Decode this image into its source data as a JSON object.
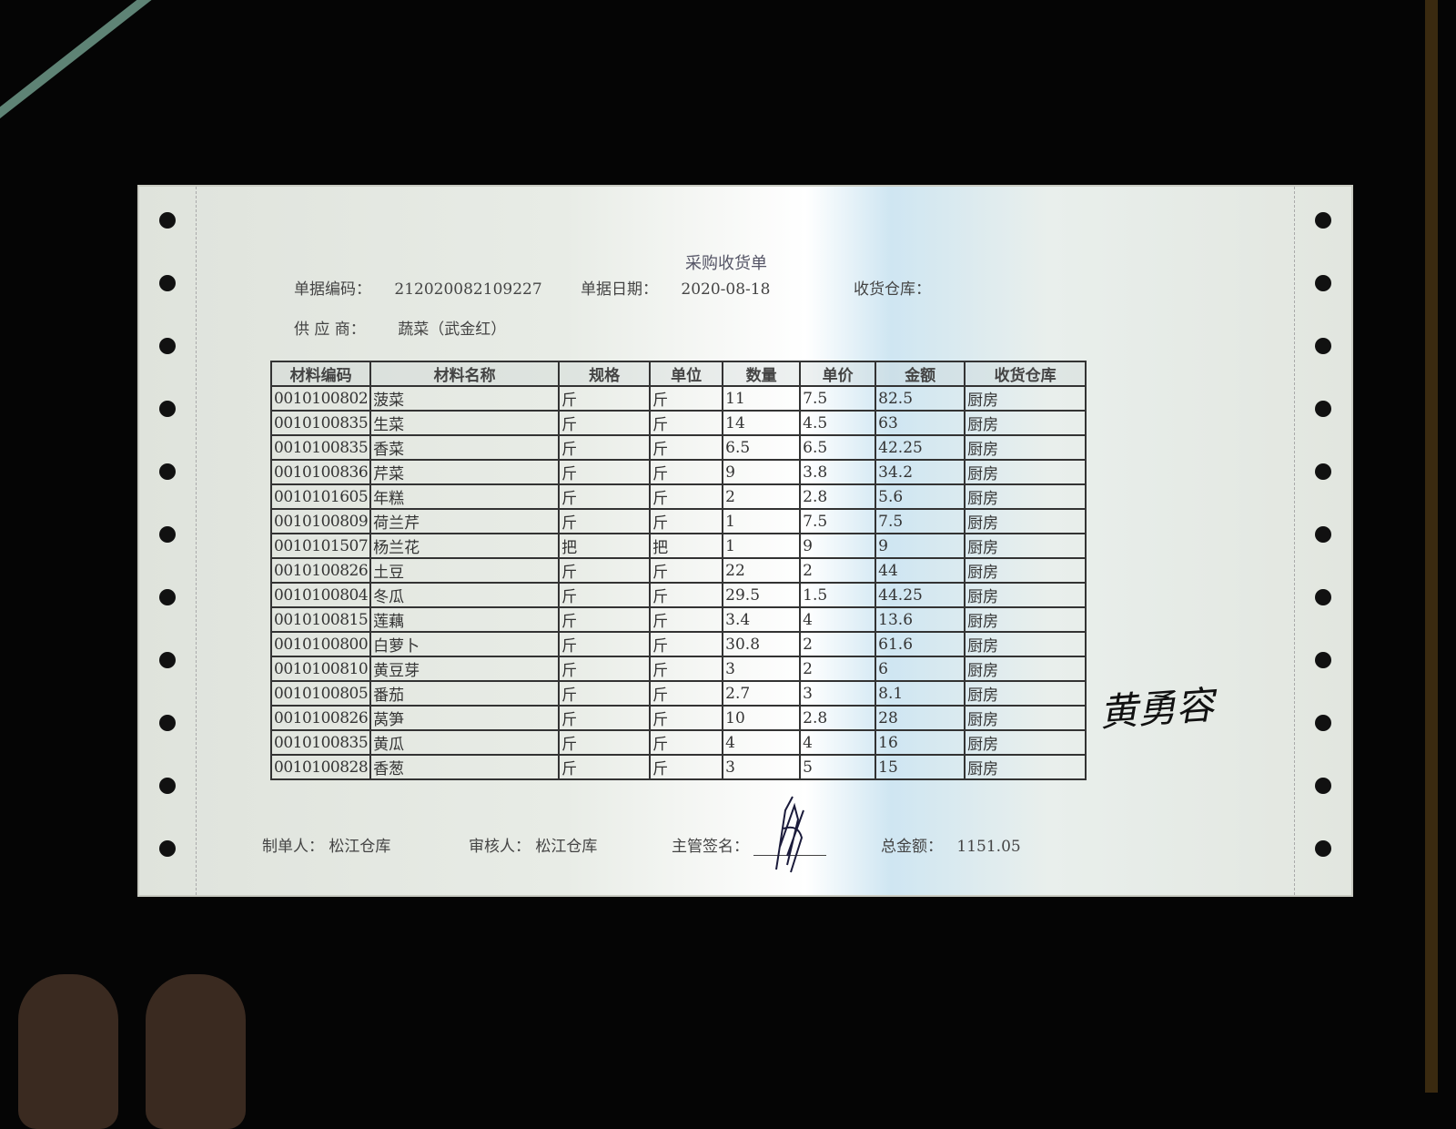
{
  "document": {
    "title": "采购收货单",
    "doc_no_label": "单据编码：",
    "doc_no": "212020082109227",
    "doc_date_label": "单据日期：",
    "doc_date": "2020-08-18",
    "warehouse_label": "收货仓库：",
    "warehouse": "",
    "supplier_label": "供 应 商：",
    "supplier": "蔬菜（武金红）"
  },
  "table": {
    "headers": [
      "材料编码",
      "材料名称",
      "规格",
      "单位",
      "数量",
      "单价",
      "金额",
      "收货仓库"
    ],
    "rows": [
      [
        "0010100802",
        "菠菜",
        "斤",
        "斤",
        "11",
        "7.5",
        "82.5",
        "厨房"
      ],
      [
        "0010100835",
        "生菜",
        "斤",
        "斤",
        "14",
        "4.5",
        "63",
        "厨房"
      ],
      [
        "0010100835",
        "香菜",
        "斤",
        "斤",
        "6.5",
        "6.5",
        "42.25",
        "厨房"
      ],
      [
        "0010100836",
        "芹菜",
        "斤",
        "斤",
        "9",
        "3.8",
        "34.2",
        "厨房"
      ],
      [
        "0010101605",
        "年糕",
        "斤",
        "斤",
        "2",
        "2.8",
        "5.6",
        "厨房"
      ],
      [
        "0010100809",
        "荷兰芹",
        "斤",
        "斤",
        "1",
        "7.5",
        "7.5",
        "厨房"
      ],
      [
        "0010101507",
        "杨兰花",
        "把",
        "把",
        "1",
        "9",
        "9",
        "厨房"
      ],
      [
        "0010100826",
        "土豆",
        "斤",
        "斤",
        "22",
        "2",
        "44",
        "厨房"
      ],
      [
        "0010100804",
        "冬瓜",
        "斤",
        "斤",
        "29.5",
        "1.5",
        "44.25",
        "厨房"
      ],
      [
        "0010100815",
        "莲藕",
        "斤",
        "斤",
        "3.4",
        "4",
        "13.6",
        "厨房"
      ],
      [
        "0010100800",
        "白萝卜",
        "斤",
        "斤",
        "30.8",
        "2",
        "61.6",
        "厨房"
      ],
      [
        "0010100810",
        "黄豆芽",
        "斤",
        "斤",
        "3",
        "2",
        "6",
        "厨房"
      ],
      [
        "0010100805",
        "番茄",
        "斤",
        "斤",
        "2.7",
        "3",
        "8.1",
        "厨房"
      ],
      [
        "0010100826",
        "莴笋",
        "斤",
        "斤",
        "10",
        "2.8",
        "28",
        "厨房"
      ],
      [
        "0010100835",
        "黄瓜",
        "斤",
        "斤",
        "4",
        "4",
        "16",
        "厨房"
      ],
      [
        "0010100828",
        "香葱",
        "斤",
        "斤",
        "3",
        "5",
        "15",
        "厨房"
      ]
    ]
  },
  "footer": {
    "maker_label": "制单人：",
    "maker": "松江仓库",
    "reviewer_label": "审核人：",
    "reviewer": "松江仓库",
    "supervisor_label": "主管签名：",
    "total_label": "总金额：",
    "total": "1151.05"
  },
  "handwriting": {
    "side_signature": "黄勇容"
  }
}
